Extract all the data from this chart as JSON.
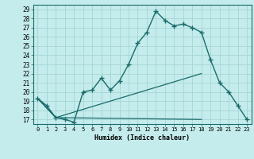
{
  "xlabel": "Humidex (Indice chaleur)",
  "bg_color": "#c5ecec",
  "grid_color": "#a8d8d8",
  "line_color": "#1a6b6b",
  "xlim": [
    -0.5,
    23.5
  ],
  "ylim": [
    16.5,
    29.5
  ],
  "xticks": [
    0,
    1,
    2,
    3,
    4,
    5,
    6,
    7,
    8,
    9,
    10,
    11,
    12,
    13,
    14,
    15,
    16,
    17,
    18,
    19,
    20,
    21,
    22,
    23
  ],
  "yticks": [
    17,
    18,
    19,
    20,
    21,
    22,
    23,
    24,
    25,
    26,
    27,
    28,
    29
  ],
  "main_line": [
    [
      0,
      19.3
    ],
    [
      1,
      18.5
    ],
    [
      2,
      17.2
    ],
    [
      3,
      17.0
    ],
    [
      4,
      16.7
    ],
    [
      5,
      20.0
    ],
    [
      6,
      20.2
    ],
    [
      7,
      21.5
    ],
    [
      8,
      20.2
    ],
    [
      9,
      21.2
    ],
    [
      10,
      23.0
    ],
    [
      11,
      25.3
    ],
    [
      12,
      26.5
    ],
    [
      13,
      28.8
    ],
    [
      14,
      27.8
    ],
    [
      15,
      27.2
    ],
    [
      16,
      27.4
    ],
    [
      17,
      27.0
    ],
    [
      18,
      26.5
    ],
    [
      19,
      23.5
    ],
    [
      20,
      21.0
    ],
    [
      21,
      20.0
    ],
    [
      22,
      18.5
    ],
    [
      23,
      17.0
    ]
  ],
  "line2": [
    [
      0,
      19.3
    ],
    [
      2,
      17.2
    ],
    [
      18,
      22.0
    ]
  ],
  "line3": [
    [
      0,
      19.3
    ],
    [
      2,
      17.2
    ],
    [
      18,
      17.0
    ]
  ]
}
